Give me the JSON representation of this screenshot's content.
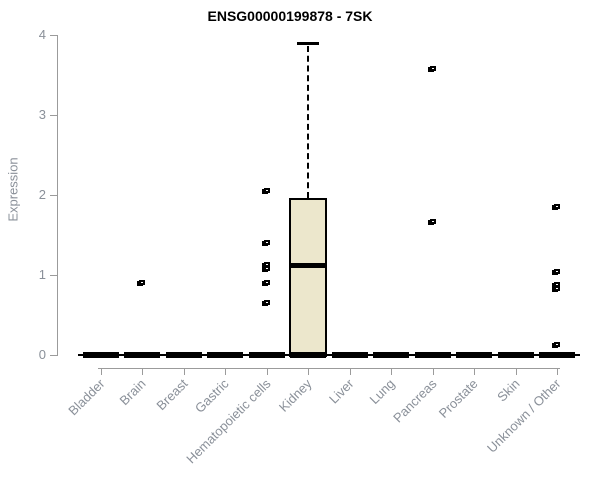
{
  "chart_data": {
    "type": "box",
    "title": "ENSG00000199878 - 7SK",
    "ylabel": "Expression",
    "xlabel": "",
    "ylim": [
      0,
      4
    ],
    "yticks": [
      0,
      1,
      2,
      3,
      4
    ],
    "grid": false,
    "legend": "none",
    "categories": [
      "Bladder",
      "Brain",
      "Breast",
      "Gastric",
      "Hematopoietic cells",
      "Kidney",
      "Liver",
      "Lung",
      "Pancreas",
      "Prostate",
      "Skin",
      "Unknown / Other"
    ],
    "boxes": [
      {
        "category": "Bladder",
        "min": 0,
        "q1": 0,
        "median": 0,
        "q3": 0,
        "max": 0,
        "outliers": []
      },
      {
        "category": "Brain",
        "min": 0,
        "q1": 0,
        "median": 0,
        "q3": 0,
        "max": 0,
        "outliers": [
          0.9
        ]
      },
      {
        "category": "Breast",
        "min": 0,
        "q1": 0,
        "median": 0,
        "q3": 0,
        "max": 0,
        "outliers": []
      },
      {
        "category": "Gastric",
        "min": 0,
        "q1": 0,
        "median": 0,
        "q3": 0,
        "max": 0,
        "outliers": []
      },
      {
        "category": "Hematopoietic cells",
        "min": 0,
        "q1": 0,
        "median": 0,
        "q3": 0,
        "max": 0,
        "outliers": [
          2.05,
          1.4,
          1.12,
          1.08,
          0.9,
          0.65
        ]
      },
      {
        "category": "Kidney",
        "min": 0,
        "q1": 0,
        "median": 1.13,
        "q3": 1.95,
        "max": 3.9,
        "outliers": []
      },
      {
        "category": "Liver",
        "min": 0,
        "q1": 0,
        "median": 0,
        "q3": 0,
        "max": 0,
        "outliers": []
      },
      {
        "category": "Lung",
        "min": 0,
        "q1": 0,
        "median": 0,
        "q3": 0,
        "max": 0,
        "outliers": []
      },
      {
        "category": "Pancreas",
        "min": 0,
        "q1": 0,
        "median": 0,
        "q3": 0,
        "max": 0,
        "outliers": [
          3.57,
          1.66
        ]
      },
      {
        "category": "Prostate",
        "min": 0,
        "q1": 0,
        "median": 0,
        "q3": 0,
        "max": 0,
        "outliers": []
      },
      {
        "category": "Skin",
        "min": 0,
        "q1": 0,
        "median": 0,
        "q3": 0,
        "max": 0,
        "outliers": []
      },
      {
        "category": "Unknown / Other",
        "min": 0,
        "q1": 0,
        "median": 0,
        "q3": 0,
        "max": 0,
        "outliers": [
          1.85,
          1.04,
          0.88,
          0.82,
          0.13
        ]
      }
    ],
    "colors": {
      "box_fill": "#ECE7CC",
      "box_border": "#000000",
      "axis_line": "#9B9B9B",
      "axis_text": "#8A9099",
      "title_text": "#000000"
    }
  }
}
